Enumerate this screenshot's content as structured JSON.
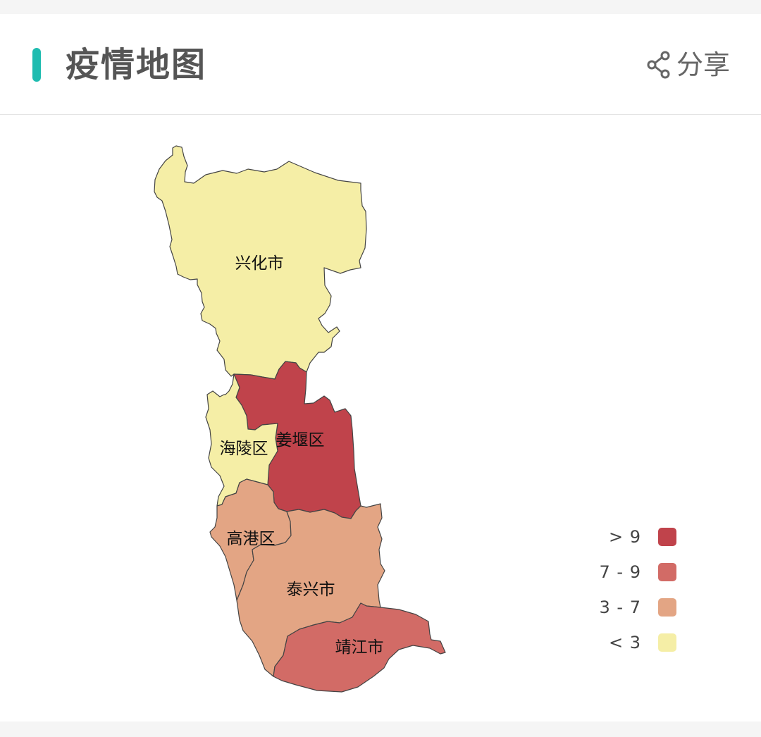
{
  "header": {
    "title": "疫情地图",
    "share_label": "分享",
    "accent_color": "#1fbcb0"
  },
  "icons": {
    "share": "share-icon"
  },
  "map": {
    "regions": [
      {
        "name": "兴化市",
        "bucket": "< 3"
      },
      {
        "name": "姜堰区",
        "bucket": "> 9"
      },
      {
        "name": "海陵区",
        "bucket": "< 3"
      },
      {
        "name": "高港区",
        "bucket": "3 - 7"
      },
      {
        "name": "泰兴市",
        "bucket": "3 - 7"
      },
      {
        "name": "靖江市",
        "bucket": "7 - 9"
      }
    ],
    "legend": [
      {
        "label": "> 9",
        "color": "#c0434b"
      },
      {
        "label": "7 - 9",
        "color": "#d26b66"
      },
      {
        "label": "3 - 7",
        "color": "#e3a584"
      },
      {
        "label": "< 3",
        "color": "#f5eea6"
      }
    ],
    "border_color": "#444444"
  }
}
